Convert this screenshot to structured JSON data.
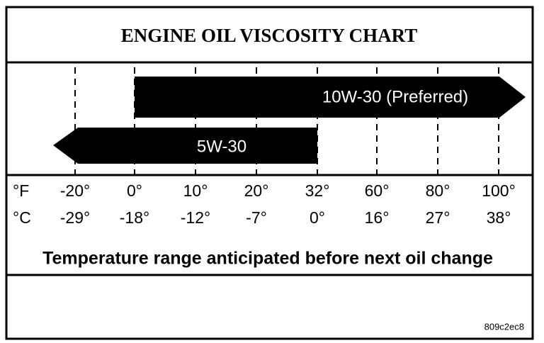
{
  "title": "ENGINE OIL VISCOSITY CHART",
  "arrows": [
    {
      "label": "10W-30 (Preferred)"
    },
    {
      "label": "5W-30"
    }
  ],
  "scale": {
    "fahrenheit_unit": "°F",
    "celsius_unit": "°C",
    "fahrenheit": [
      "-20°",
      "0°",
      "10°",
      "20°",
      "32°",
      "60°",
      "80°",
      "100°"
    ],
    "celsius": [
      "-29°",
      "-18°",
      "-12°",
      "-7°",
      "0°",
      "16°",
      "27°",
      "38°"
    ]
  },
  "caption": "Temperature range anticipated before next oil change",
  "code": "809c2ec8"
}
